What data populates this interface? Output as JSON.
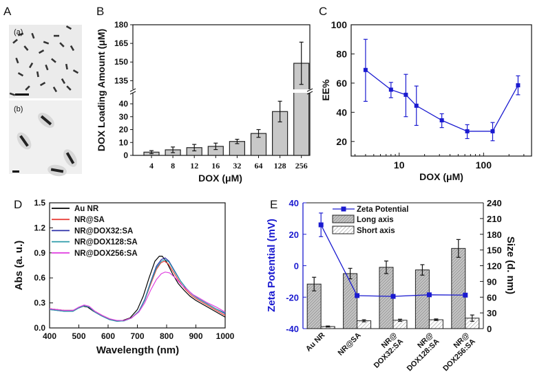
{
  "panels": {
    "A": "A",
    "B": "B",
    "C": "C",
    "D": "D",
    "E": "E",
    "micrograph_a_label": "(a)",
    "micrograph_b_label": "(b)"
  },
  "colors": {
    "blue": "#1a1ad0",
    "bar_gray": "#c8c8c8"
  },
  "chart_data": [
    {
      "type": "bar",
      "categories": [
        "4",
        "8",
        "12",
        "16",
        "32",
        "64",
        "128",
        "256"
      ],
      "values": [
        2.5,
        4.3,
        6.0,
        7.0,
        10.8,
        17.0,
        34.0,
        149.0
      ],
      "errors": [
        1.2,
        2.2,
        2.5,
        2.5,
        1.7,
        3.0,
        8.0,
        17.0
      ],
      "xlabel": "DOX (μM)",
      "ylabel": "DOX Loading Amount (μM)",
      "y_break": true,
      "ylim_lower": [
        0,
        48
      ],
      "ylim_upper": [
        128,
        180
      ],
      "yticks_lower": [
        "0",
        "10",
        "20",
        "30",
        "40"
      ],
      "yticks_upper": [
        "135",
        "150",
        "165",
        "180"
      ],
      "grid": false
    },
    {
      "type": "line",
      "x": [
        4,
        8,
        12,
        16,
        32,
        64,
        128,
        256
      ],
      "y": [
        69,
        55.5,
        52,
        44.5,
        34.5,
        27,
        27,
        58.5
      ],
      "y_low": [
        47.5,
        50,
        37,
        31,
        29.5,
        22,
        20.5,
        52
      ],
      "y_high": [
        90,
        60.5,
        66,
        58,
        39,
        31.5,
        33,
        65
      ],
      "xscale": "log",
      "xlim": [
        2.7,
        370
      ],
      "ylim": [
        10,
        100
      ],
      "xticks": [
        "10",
        "100"
      ],
      "yticks": [
        "20",
        "40",
        "60",
        "80",
        "100"
      ],
      "xlabel": "DOX (μM)",
      "ylabel": "EE%",
      "color": "#1a1ad0",
      "marker": "square",
      "grid": false
    },
    {
      "type": "line",
      "xlabel": "Wavelength (nm)",
      "ylabel": "Abs (a. u.)",
      "xlim": [
        400,
        1000
      ],
      "ylim": [
        0,
        1.5
      ],
      "xticks": [
        "400",
        "500",
        "600",
        "700",
        "800",
        "900",
        "1000"
      ],
      "yticks": [
        "0.0",
        "0.3",
        "0.6",
        "0.9",
        "1.2",
        "1.5"
      ],
      "legend": "top-left",
      "grid": false,
      "series": [
        {
          "name": "Au NR",
          "color": "#000000",
          "points": [
            [
              400,
              0.23
            ],
            [
              450,
              0.21
            ],
            [
              480,
              0.21
            ],
            [
              500,
              0.24
            ],
            [
              515,
              0.26
            ],
            [
              530,
              0.25
            ],
            [
              550,
              0.2
            ],
            [
              575,
              0.15
            ],
            [
              600,
              0.11
            ],
            [
              625,
              0.085
            ],
            [
              650,
              0.09
            ],
            [
              675,
              0.12
            ],
            [
              700,
              0.22
            ],
            [
              720,
              0.38
            ],
            [
              740,
              0.6
            ],
            [
              760,
              0.8
            ],
            [
              775,
              0.86
            ],
            [
              785,
              0.86
            ],
            [
              800,
              0.79
            ],
            [
              820,
              0.65
            ],
            [
              840,
              0.53
            ],
            [
              860,
              0.45
            ],
            [
              880,
              0.38
            ],
            [
              900,
              0.33
            ],
            [
              930,
              0.27
            ],
            [
              960,
              0.21
            ],
            [
              1000,
              0.13
            ]
          ]
        },
        {
          "name": "NR@SA",
          "color": "#e8403a",
          "points": [
            [
              400,
              0.23
            ],
            [
              450,
              0.21
            ],
            [
              480,
              0.21
            ],
            [
              500,
              0.24
            ],
            [
              518,
              0.265
            ],
            [
              535,
              0.25
            ],
            [
              555,
              0.2
            ],
            [
              580,
              0.15
            ],
            [
              605,
              0.11
            ],
            [
              630,
              0.085
            ],
            [
              655,
              0.09
            ],
            [
              680,
              0.12
            ],
            [
              705,
              0.2
            ],
            [
              725,
              0.33
            ],
            [
              745,
              0.52
            ],
            [
              765,
              0.7
            ],
            [
              780,
              0.78
            ],
            [
              792,
              0.8
            ],
            [
              805,
              0.77
            ],
            [
              825,
              0.66
            ],
            [
              845,
              0.55
            ],
            [
              865,
              0.46
            ],
            [
              885,
              0.39
            ],
            [
              905,
              0.34
            ],
            [
              935,
              0.28
            ],
            [
              965,
              0.22
            ],
            [
              1000,
              0.15
            ]
          ]
        },
        {
          "name": "NR@DOX32:SA",
          "color": "#2b2fa8",
          "points": [
            [
              400,
              0.22
            ],
            [
              450,
              0.2
            ],
            [
              480,
              0.2
            ],
            [
              500,
              0.24
            ],
            [
              518,
              0.265
            ],
            [
              535,
              0.25
            ],
            [
              555,
              0.19
            ],
            [
              580,
              0.14
            ],
            [
              605,
              0.1
            ],
            [
              630,
              0.08
            ],
            [
              655,
              0.085
            ],
            [
              680,
              0.12
            ],
            [
              705,
              0.2
            ],
            [
              725,
              0.34
            ],
            [
              745,
              0.55
            ],
            [
              765,
              0.74
            ],
            [
              782,
              0.82
            ],
            [
              795,
              0.84
            ],
            [
              808,
              0.8
            ],
            [
              828,
              0.68
            ],
            [
              848,
              0.56
            ],
            [
              868,
              0.47
            ],
            [
              888,
              0.4
            ],
            [
              908,
              0.35
            ],
            [
              938,
              0.29
            ],
            [
              968,
              0.23
            ],
            [
              1000,
              0.17
            ]
          ]
        },
        {
          "name": "NR@DOX128:SA",
          "color": "#2a9aa8",
          "points": [
            [
              400,
              0.22
            ],
            [
              450,
              0.2
            ],
            [
              480,
              0.2
            ],
            [
              500,
              0.24
            ],
            [
              518,
              0.265
            ],
            [
              535,
              0.25
            ],
            [
              555,
              0.19
            ],
            [
              580,
              0.14
            ],
            [
              605,
              0.1
            ],
            [
              630,
              0.08
            ],
            [
              655,
              0.085
            ],
            [
              680,
              0.12
            ],
            [
              705,
              0.2
            ],
            [
              725,
              0.33
            ],
            [
              745,
              0.54
            ],
            [
              765,
              0.72
            ],
            [
              782,
              0.8
            ],
            [
              795,
              0.82
            ],
            [
              808,
              0.79
            ],
            [
              828,
              0.67
            ],
            [
              848,
              0.56
            ],
            [
              868,
              0.47
            ],
            [
              888,
              0.4
            ],
            [
              908,
              0.35
            ],
            [
              938,
              0.29
            ],
            [
              968,
              0.23
            ],
            [
              1000,
              0.18
            ]
          ]
        },
        {
          "name": "NR@DOX256:SA",
          "color": "#e040e0",
          "points": [
            [
              400,
              0.23
            ],
            [
              450,
              0.21
            ],
            [
              480,
              0.21
            ],
            [
              500,
              0.25
            ],
            [
              518,
              0.275
            ],
            [
              535,
              0.26
            ],
            [
              555,
              0.2
            ],
            [
              580,
              0.15
            ],
            [
              605,
              0.11
            ],
            [
              630,
              0.09
            ],
            [
              655,
              0.09
            ],
            [
              680,
              0.12
            ],
            [
              705,
              0.19
            ],
            [
              725,
              0.3
            ],
            [
              745,
              0.45
            ],
            [
              765,
              0.58
            ],
            [
              782,
              0.65
            ],
            [
              795,
              0.67
            ],
            [
              810,
              0.66
            ],
            [
              830,
              0.6
            ],
            [
              850,
              0.52
            ],
            [
              870,
              0.46
            ],
            [
              890,
              0.4
            ],
            [
              910,
              0.36
            ],
            [
              940,
              0.3
            ],
            [
              970,
              0.25
            ],
            [
              1000,
              0.19
            ]
          ]
        }
      ]
    },
    {
      "type": "bar",
      "categories": [
        [
          "Au NR"
        ],
        [
          "NR@SA"
        ],
        [
          "NR@",
          "DOX32:SA"
        ],
        [
          "NR@",
          "DOX128:SA"
        ],
        [
          "NR@",
          "DOX256:SA"
        ]
      ],
      "ylabel_left": "Zeta Potential (mV)",
      "ylabel_right": "Size (d. nm)",
      "ylim_left": [
        -40,
        40
      ],
      "ylim_right": [
        0,
        240
      ],
      "yticks_left": [
        "-40",
        "-20",
        "0",
        "20",
        "40"
      ],
      "yticks_right": [
        "0",
        "30",
        "60",
        "90",
        "120",
        "150",
        "180",
        "210",
        "240"
      ],
      "legend": "top-left",
      "grid": false,
      "series": [
        {
          "name": "Zeta Potential",
          "type": "line",
          "axis": "left",
          "color": "#1a1ad0",
          "values": [
            26,
            -19,
            -19.5,
            -18.5,
            -18.7
          ],
          "errors": [
            7.5,
            0.8,
            0.8,
            0.8,
            0.8
          ]
        },
        {
          "name": "Long axis",
          "type": "bar",
          "axis": "right",
          "pattern": "dense-hatch",
          "values": [
            85,
            105,
            117,
            112,
            153
          ],
          "errors": [
            13,
            10,
            12,
            10,
            17
          ]
        },
        {
          "name": "Short axis",
          "type": "bar",
          "axis": "right",
          "pattern": "sparse-hatch",
          "values": [
            4,
            15,
            16,
            17,
            20
          ],
          "errors": [
            1,
            2,
            2,
            1.5,
            6
          ]
        }
      ]
    }
  ]
}
